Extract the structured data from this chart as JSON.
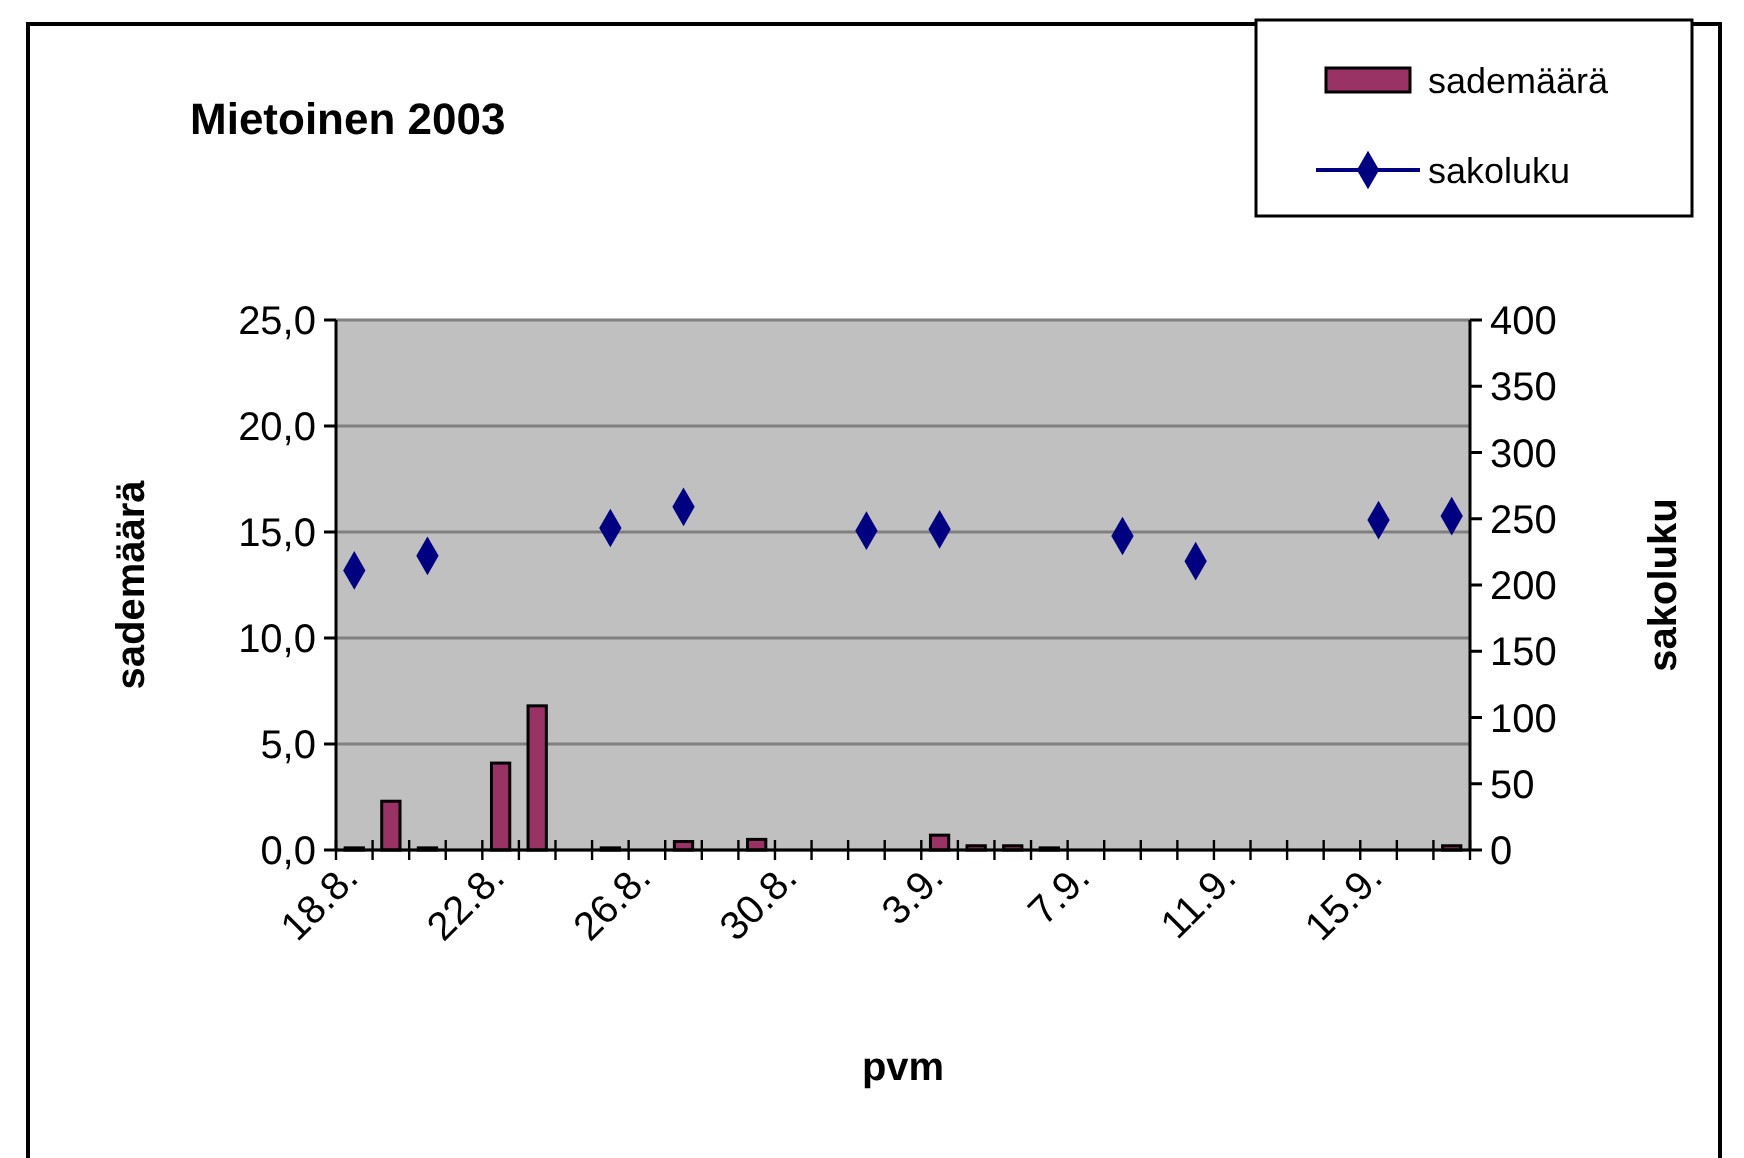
{
  "chart_data": {
    "type": "bar",
    "title": "Mietoinen 2003",
    "xlabel": "pvm",
    "ylabel": "sademäärä",
    "y2label": "sakoluku",
    "categories": [
      "18.8.",
      null,
      null,
      null,
      "22.8.",
      null,
      null,
      null,
      "26.8.",
      null,
      null,
      null,
      "30.8.",
      null,
      null,
      null,
      "3.9.",
      null,
      null,
      null,
      "7.9.",
      null,
      null,
      null,
      "11.9.",
      null,
      null,
      null,
      "15.9.",
      null,
      null
    ],
    "series": [
      {
        "name": "sademäärä",
        "color": "#993366",
        "values": [
          0.1,
          2.3,
          0.1,
          null,
          4.1,
          6.8,
          null,
          0.1,
          null,
          0.4,
          null,
          0.5,
          null,
          null,
          null,
          null,
          0.7,
          0.2,
          0.2,
          0.1,
          null,
          null,
          null,
          null,
          null,
          null,
          null,
          null,
          null,
          null,
          0.2
        ]
      },
      {
        "name": "sakoluku",
        "type": "scatter",
        "axis": "y2",
        "color": "#000080",
        "marker": "diamond",
        "values": [
          211,
          null,
          222,
          null,
          null,
          null,
          null,
          243,
          null,
          259,
          null,
          null,
          null,
          null,
          241,
          null,
          242,
          null,
          null,
          null,
          null,
          237,
          null,
          218,
          null,
          null,
          null,
          null,
          249,
          null,
          252
        ]
      }
    ],
    "ylim": [
      0,
      25
    ],
    "yticks": [
      {
        "value": 0,
        "label": "0,0"
      },
      {
        "value": 5,
        "label": "5,0"
      },
      {
        "value": 10,
        "label": "10,0"
      },
      {
        "value": 15,
        "label": "15,0"
      },
      {
        "value": 20,
        "label": "20,0"
      },
      {
        "value": 25,
        "label": "25,0"
      }
    ],
    "y2lim": [
      0,
      400
    ],
    "y2ticks": [
      0,
      50,
      100,
      150,
      200,
      250,
      300,
      350,
      400
    ],
    "grid": "y",
    "legend": "top right"
  }
}
